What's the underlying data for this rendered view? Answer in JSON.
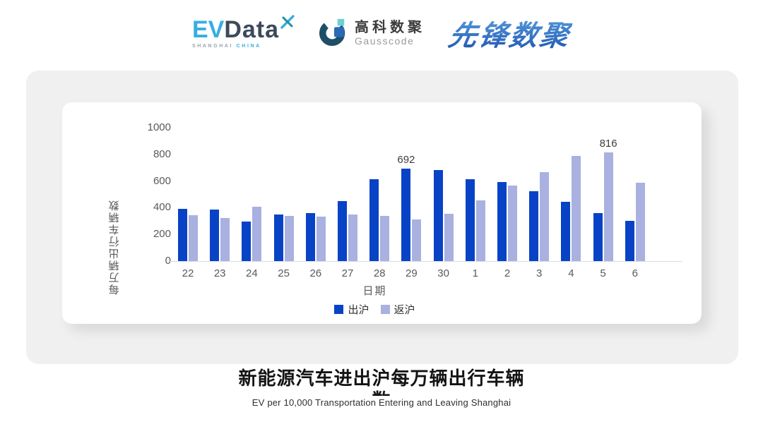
{
  "header": {
    "evdata": {
      "ev": "EV",
      "data": "Data",
      "sub_left": "SHANGHAI",
      "sub_right": "CHINA"
    },
    "gausscode": {
      "cn": "高科数聚",
      "en": "Gausscode"
    },
    "xianfeng": {
      "text": "先锋数聚"
    }
  },
  "chart_data": {
    "type": "bar",
    "categories": [
      "22",
      "23",
      "24",
      "25",
      "26",
      "27",
      "28",
      "29",
      "30",
      "1",
      "2",
      "3",
      "4",
      "5",
      "6"
    ],
    "series": [
      {
        "name": "出沪",
        "color": "#0843C6",
        "values": [
          390,
          385,
          298,
          348,
          362,
          451,
          612,
          692,
          684,
          612,
          590,
          523,
          443,
          360,
          300
        ]
      },
      {
        "name": "返沪",
        "color": "#A8B1E0",
        "values": [
          345,
          324,
          406,
          340,
          334,
          347,
          336,
          311,
          356,
          455,
          568,
          667,
          790,
          816,
          586
        ]
      }
    ],
    "annotations": [
      {
        "series": 0,
        "category_index": 7,
        "label": "692"
      },
      {
        "series": 1,
        "category_index": 13,
        "label": "816"
      }
    ],
    "title": "",
    "xlabel": "日期",
    "ylabel": "每万辆出行车辆数",
    "ylim": [
      0,
      1000
    ],
    "yticks": [
      0,
      200,
      400,
      600,
      800,
      1000
    ],
    "grid": false,
    "legend_position": "bottom"
  },
  "footer": {
    "title": "新能源汽车进出沪每万辆出行车辆数",
    "subtitle": "EV per 10,000 Transportation Entering and Leaving Shanghai"
  }
}
